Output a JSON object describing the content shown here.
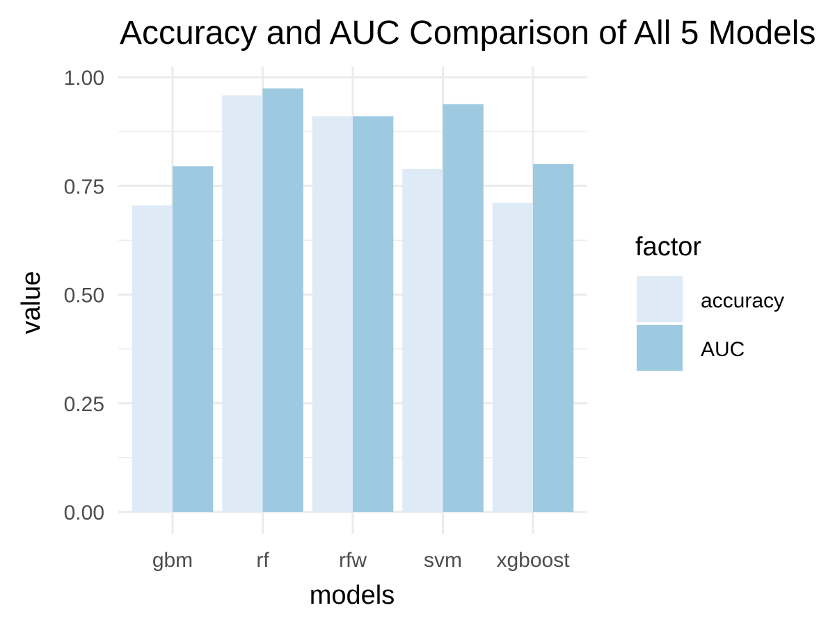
{
  "chart_data": {
    "type": "bar",
    "title": "Accuracy and AUC Comparison of All 5 Models",
    "xlabel": "models",
    "ylabel": "value",
    "categories": [
      "gbm",
      "rf",
      "rfw",
      "svm",
      "xgboost"
    ],
    "series": [
      {
        "name": "accuracy",
        "values": [
          0.705,
          0.958,
          0.91,
          0.789,
          0.711
        ],
        "color": "#deebf7"
      },
      {
        "name": "AUC",
        "values": [
          0.795,
          0.974,
          0.91,
          0.938,
          0.8
        ],
        "color": "#9ecae1"
      }
    ],
    "ylim": [
      0,
      1.0
    ],
    "yticks": [
      "0.00",
      "0.25",
      "0.50",
      "0.75",
      "1.00"
    ],
    "grid": true,
    "legend": {
      "title": "factor",
      "position": "right"
    }
  }
}
